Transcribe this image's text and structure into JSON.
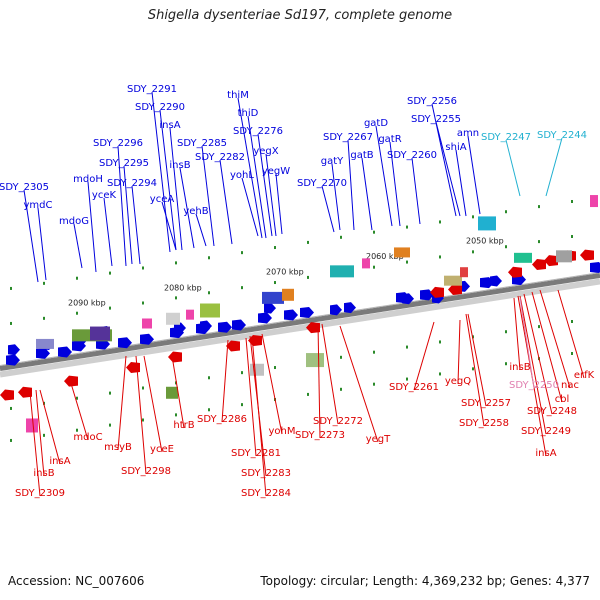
{
  "title": "Shigella dysenteriae Sd197, complete genome",
  "footer": {
    "accession": "Accession: NC_007606",
    "summary": "Topology: circular; Length: 4,369,232 bp; Genes: 4,377"
  },
  "colors": {
    "forward": "#0000dd",
    "reverse": "#dd0000",
    "pseudo_forward": "#20b0d0",
    "pseudo_reverse": "#e080b0",
    "backbone": "#7a7a7a"
  },
  "scale_ticks": [
    "2090 kbp",
    "2080 kbp",
    "2070 kbp",
    "2060 kbp",
    "2050 kbp"
  ],
  "forward_genes": [
    "SDY_2305",
    "ymdC",
    "mdoH",
    "mdoG",
    "SDY_2296",
    "SDY_2295",
    "yceK",
    "SDY_2294",
    "SDY_2291",
    "SDY_2290",
    "insA",
    "yceA",
    "insB",
    "SDY_2285",
    "yehB",
    "SDY_2282",
    "thiM",
    "thiD",
    "SDY_2276",
    "yegX",
    "yohL",
    "yegW",
    "SDY_2270",
    "SDY_2267",
    "gatY",
    "gatB",
    "gatD",
    "gatR",
    "SDY_2260",
    "SDY_2256",
    "SDY_2255",
    "shiA",
    "amn"
  ],
  "forward_pseudo_genes": [
    "SDY_2247",
    "SDY_2244"
  ],
  "reverse_genes": [
    "insA",
    "mdoC",
    "insB",
    "SDY_2309",
    "msyB",
    "SDY_2298",
    "yceE",
    "htrB",
    "SDY_2286",
    "SDY_2281",
    "SDY_2283",
    "SDY_2284",
    "yohM",
    "SDY_2273",
    "SDY_2272",
    "yegT",
    "SDY_2261",
    "yegQ",
    "SDY_2257",
    "SDY_2258",
    "insB",
    "nac",
    "cbl",
    "erfK",
    "SDY_2248",
    "SDY_2249",
    "insA"
  ],
  "reverse_pseudo_genes": [
    "SDY_2250"
  ]
}
